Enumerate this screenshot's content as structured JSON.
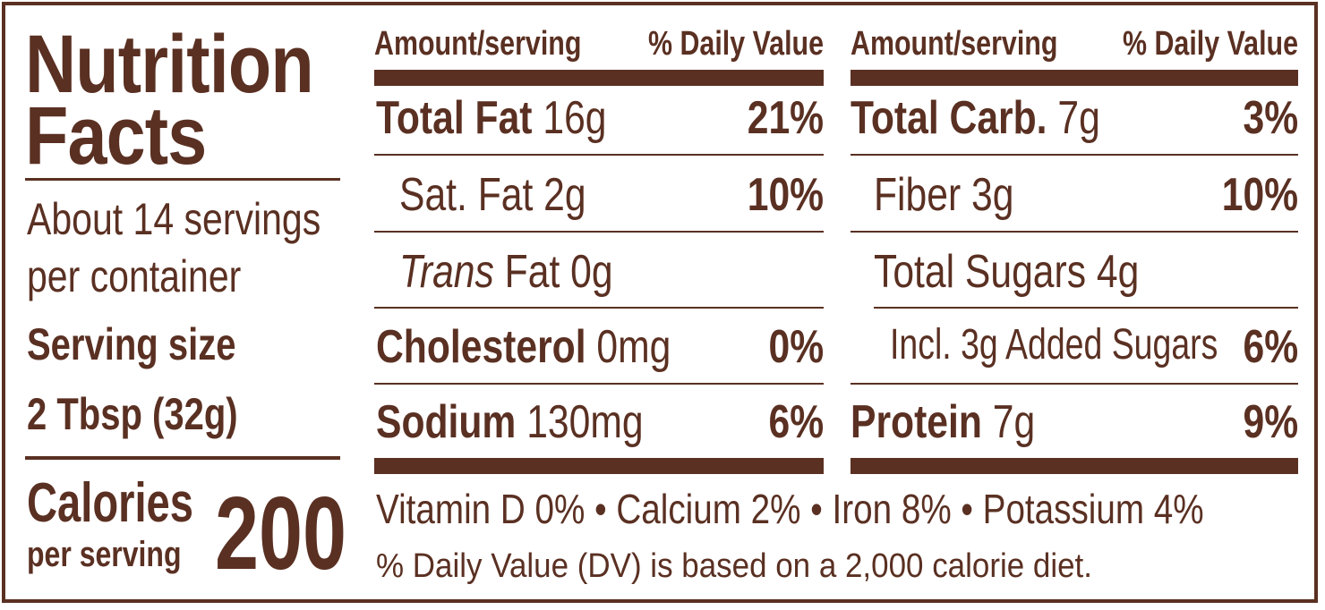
{
  "label": {
    "title_line1": "Nutrition",
    "title_line2": "Facts",
    "servings_line1": "About 14 servings",
    "servings_line2": "per container",
    "serving_size_label": "Serving size",
    "serving_size_value": "2 Tbsp (32g)",
    "calories_label": "Calories",
    "calories_sub": "per serving",
    "calories_value": "200"
  },
  "left_table": {
    "header_amount": "Amount/serving",
    "header_dv": "% Daily Value",
    "rows": [
      {
        "name": "Total Fat",
        "amount": "16g",
        "dv": "21%"
      },
      {
        "name": "Sat. Fat",
        "amount": "2g",
        "dv": "10%"
      },
      {
        "name_italic": "Trans",
        "name": "Fat",
        "amount": "0g",
        "dv": ""
      },
      {
        "name": "Cholesterol",
        "amount": "0mg",
        "dv": "0%"
      },
      {
        "name": "Sodium",
        "amount": "130mg",
        "dv": "6%"
      }
    ]
  },
  "right_table": {
    "header_amount": "Amount/serving",
    "header_dv": "% Daily Value",
    "rows": [
      {
        "name": "Total Carb.",
        "amount": "7g",
        "dv": "3%"
      },
      {
        "name": "Fiber",
        "amount": "3g",
        "dv": "10%"
      },
      {
        "name": "Total Sugars",
        "amount": "4g",
        "dv": ""
      },
      {
        "name": "Incl. 3g Added Sugars",
        "amount": "",
        "dv": "6%"
      },
      {
        "name": "Protein",
        "amount": "7g",
        "dv": "9%"
      }
    ]
  },
  "footer": {
    "vitamins": "Vitamin D 0% • Calcium 2% • Iron 8% • Potassium 4%",
    "dv_note": "% Daily Value (DV) is based on a 2,000 calorie diet."
  },
  "colors": {
    "ink": "#5a3022",
    "background": "#ffffff"
  }
}
